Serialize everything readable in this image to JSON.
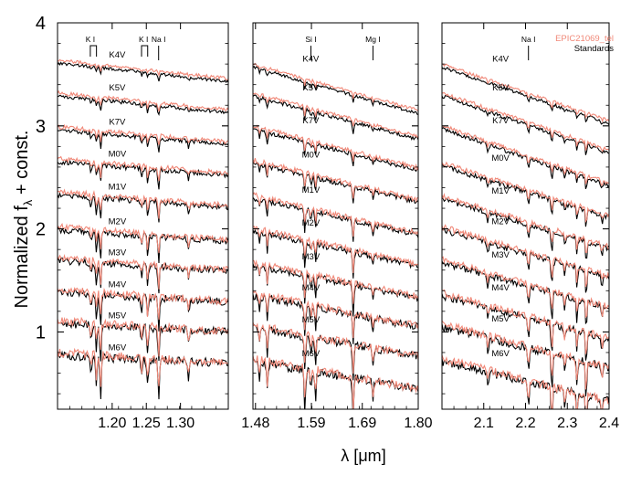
{
  "chart_data": {
    "type": "line",
    "ylabel": "Normalized f",
    "ylabel_sub": "λ",
    "ylabel_suffix": " + const.",
    "xlabel_prefix": "λ [",
    "xlabel_unit": "μm",
    "xlabel_suffix": "]",
    "ylim": [
      0.25,
      4.0
    ],
    "yticks": [
      1,
      2,
      3,
      4
    ],
    "yticklabels": [
      "1",
      "2",
      "3",
      "4"
    ],
    "legend": {
      "placement": "top-right",
      "entries": [
        {
          "name": "EPIC21069_tel",
          "color": "#f08878"
        },
        {
          "name": "Standards",
          "color": "#000000"
        }
      ]
    },
    "spectral_types": [
      "K4V",
      "K5V",
      "K7V",
      "M0V",
      "M1V",
      "M2V",
      "M3V",
      "M4V",
      "M5V",
      "M6V"
    ],
    "panels": [
      {
        "band": "J",
        "xlim": [
          1.12,
          1.37
        ],
        "xticks": [
          1.2,
          1.25,
          1.3
        ],
        "xticklabels": [
          "1.20",
          "1.25",
          "1.30"
        ],
        "offsets": [
          3.62,
          3.3,
          2.97,
          2.66,
          2.34,
          2.0,
          1.7,
          1.39,
          1.09,
          0.78
        ],
        "slopes": [
          -0.18,
          -0.16,
          -0.14,
          -0.13,
          -0.12,
          -0.11,
          -0.1,
          -0.09,
          -0.08,
          -0.07
        ],
        "line_labels": [
          {
            "text": "K I",
            "x": 1.168,
            "bracket": [
              1.168,
              1.177
            ]
          },
          {
            "text": "K I",
            "x": 1.246,
            "bracket": [
              1.243,
              1.252
            ]
          },
          {
            "text": "Na I",
            "x": 1.268,
            "bracket": null
          }
        ],
        "absorption_lines": [
          1.169,
          1.177,
          1.183,
          1.243,
          1.252,
          1.268,
          1.312
        ]
      },
      {
        "band": "H",
        "xlim": [
          1.475,
          1.8
        ],
        "xticks": [
          1.48,
          1.59,
          1.69,
          1.8
        ],
        "xticklabels": [
          "1.48",
          "1.59",
          "1.69",
          "1.80"
        ],
        "offsets": [
          3.58,
          3.3,
          2.98,
          2.65,
          2.31,
          1.99,
          1.66,
          1.36,
          1.05,
          0.72
        ],
        "slopes": [
          -0.45,
          -0.42,
          -0.4,
          -0.38,
          -0.36,
          -0.34,
          -0.32,
          -0.3,
          -0.28,
          -0.26
        ],
        "line_labels": [
          {
            "text": "Si I",
            "x": 1.589,
            "bracket": null
          },
          {
            "text": "Mg I",
            "x": 1.711,
            "bracket": null
          }
        ],
        "absorption_lines": [
          1.488,
          1.503,
          1.577,
          1.589,
          1.598,
          1.672,
          1.711
        ]
      },
      {
        "band": "K",
        "xlim": [
          2.0,
          2.4
        ],
        "xticks": [
          2.1,
          2.2,
          2.3,
          2.4
        ],
        "xticklabels": [
          "2.1",
          "2.2",
          "2.3",
          "2.4"
        ],
        "offsets": [
          3.58,
          3.3,
          2.98,
          2.62,
          2.3,
          2.0,
          1.68,
          1.36,
          1.06,
          0.72
        ],
        "slopes": [
          -0.55,
          -0.55,
          -0.55,
          -0.5,
          -0.48,
          -0.46,
          -0.44,
          -0.42,
          -0.4,
          -0.38
        ],
        "line_labels": [
          {
            "text": "Na I",
            "x": 2.207,
            "bracket": null
          }
        ],
        "absorption_lines": [
          2.11,
          2.207,
          2.263,
          2.294,
          2.323,
          2.345,
          2.383
        ]
      }
    ]
  }
}
